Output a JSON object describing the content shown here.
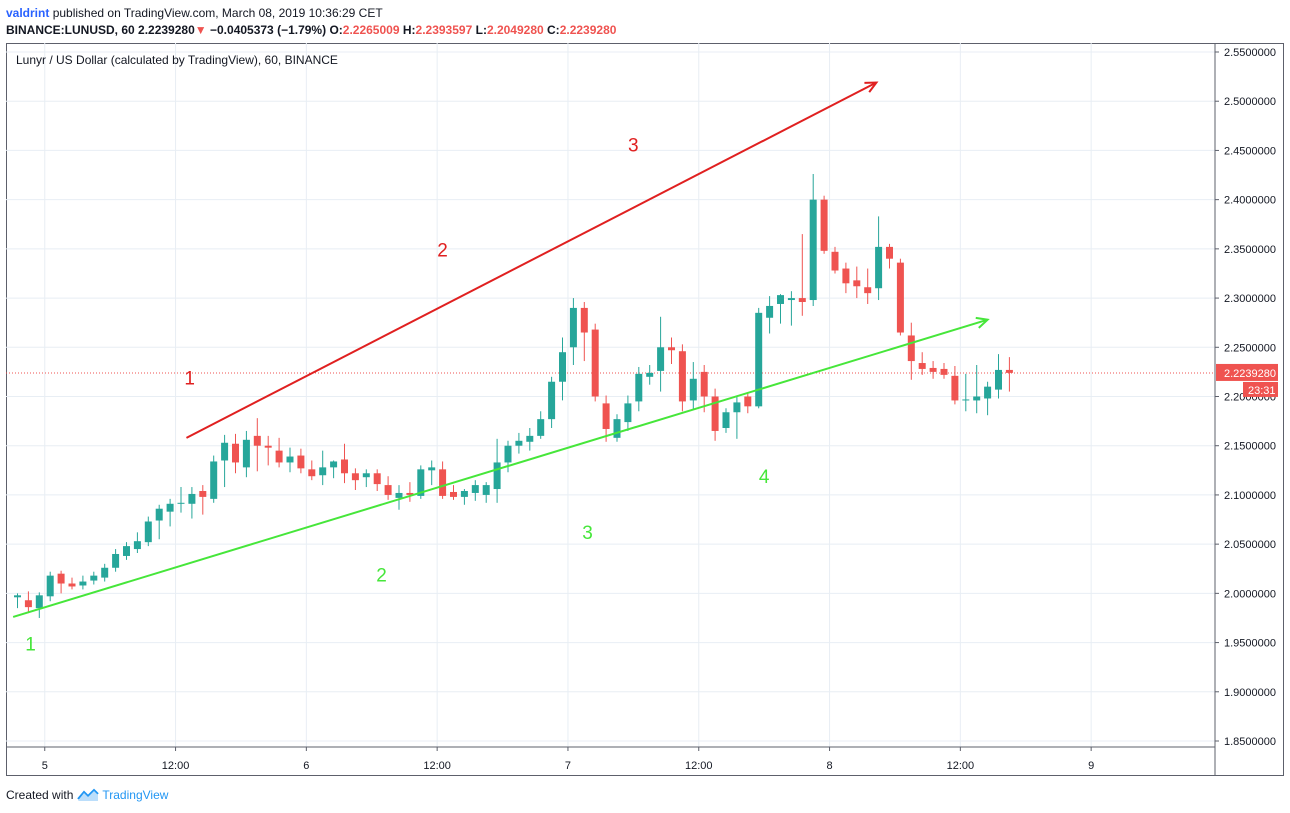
{
  "header": {
    "author": "valdrint",
    "published": "published on TradingView.com, March 08, 2019 10:36:29 CET",
    "symbol": "BINANCE:LUNUSD, 60",
    "last": "2.2239280",
    "change_arrow": "▼",
    "change": "−0.0405373 (−1.79%)",
    "o_label": "O:",
    "o_value": "2.2265009",
    "h_label": "H:",
    "h_value": "2.2393597",
    "l_label": "L:",
    "l_value": "2.2049280",
    "c_label": "C:",
    "c_value": "2.2239280"
  },
  "footer": {
    "created_with": "Created with",
    "brand": "TradingView"
  },
  "colors": {
    "up": "#26a69a",
    "down": "#ef5350",
    "upper_line": "#e02020",
    "lower_line": "#46e63a",
    "grid": "#e8eef4",
    "price_line": "#ef5350"
  },
  "chart_data": {
    "type": "candlestick",
    "title": "Lunyr / US Dollar (calculated by TradingView), 60, BINANCE",
    "timeframe": "60",
    "y_range": [
      1.835,
      2.56
    ],
    "y_ticks": [
      "2.5500000",
      "2.5000000",
      "2.4500000",
      "2.4000000",
      "2.3500000",
      "2.3000000",
      "2.2500000",
      "2.2000000",
      "2.1500000",
      "2.1000000",
      "2.0500000",
      "2.0000000",
      "1.9500000",
      "1.9000000",
      "1.8500000"
    ],
    "x_ticks": [
      {
        "label": "5",
        "bar": 2.5
      },
      {
        "label": "12:00",
        "bar": 14.5
      },
      {
        "label": "6",
        "bar": 26.5
      },
      {
        "label": "12:00",
        "bar": 38.5
      },
      {
        "label": "7",
        "bar": 50.5
      },
      {
        "label": "12:00",
        "bar": 62.5
      },
      {
        "label": "8",
        "bar": 74.5
      },
      {
        "label": "12:00",
        "bar": 86.5
      },
      {
        "label": "9",
        "bar": 98.5
      }
    ],
    "current_price": "2.2239280",
    "countdown": "23:31",
    "candles": [
      [
        1.996,
        2.0,
        1.985,
        1.998
      ],
      [
        1.993,
        2.002,
        1.98,
        1.986
      ],
      [
        1.985,
        2.001,
        1.975,
        1.998
      ],
      [
        1.997,
        2.022,
        1.992,
        2.018
      ],
      [
        2.02,
        2.023,
        2.0,
        2.01
      ],
      [
        2.01,
        2.016,
        2.004,
        2.007
      ],
      [
        2.008,
        2.018,
        2.004,
        2.012
      ],
      [
        2.013,
        2.022,
        2.009,
        2.018
      ],
      [
        2.016,
        2.03,
        2.012,
        2.026
      ],
      [
        2.026,
        2.045,
        2.022,
        2.04
      ],
      [
        2.038,
        2.052,
        2.034,
        2.048
      ],
      [
        2.045,
        2.062,
        2.041,
        2.053
      ],
      [
        2.052,
        2.078,
        2.048,
        2.073
      ],
      [
        2.074,
        2.09,
        2.055,
        2.086
      ],
      [
        2.083,
        2.096,
        2.068,
        2.091
      ],
      [
        2.091,
        2.108,
        2.082,
        2.092
      ],
      [
        2.091,
        2.108,
        2.076,
        2.101
      ],
      [
        2.104,
        2.11,
        2.08,
        2.098
      ],
      [
        2.096,
        2.14,
        2.092,
        2.134
      ],
      [
        2.135,
        2.161,
        2.108,
        2.153
      ],
      [
        2.152,
        2.162,
        2.122,
        2.133
      ],
      [
        2.128,
        2.165,
        2.118,
        2.156
      ],
      [
        2.16,
        2.178,
        2.124,
        2.15
      ],
      [
        2.15,
        2.16,
        2.13,
        2.148
      ],
      [
        2.145,
        2.158,
        2.128,
        2.133
      ],
      [
        2.133,
        2.148,
        2.123,
        2.139
      ],
      [
        2.14,
        2.147,
        2.122,
        2.127
      ],
      [
        2.126,
        2.135,
        2.115,
        2.119
      ],
      [
        2.12,
        2.145,
        2.11,
        2.128
      ],
      [
        2.128,
        2.135,
        2.117,
        2.134
      ],
      [
        2.136,
        2.152,
        2.112,
        2.122
      ],
      [
        2.122,
        2.127,
        2.105,
        2.115
      ],
      [
        2.118,
        2.126,
        2.108,
        2.122
      ],
      [
        2.122,
        2.126,
        2.104,
        2.111
      ],
      [
        2.11,
        2.119,
        2.095,
        2.1
      ],
      [
        2.097,
        2.11,
        2.085,
        2.102
      ],
      [
        2.102,
        2.113,
        2.093,
        2.1
      ],
      [
        2.099,
        2.13,
        2.096,
        2.126
      ],
      [
        2.125,
        2.135,
        2.11,
        2.128
      ],
      [
        2.126,
        2.134,
        2.096,
        2.099
      ],
      [
        2.103,
        2.11,
        2.095,
        2.098
      ],
      [
        2.098,
        2.106,
        2.09,
        2.104
      ],
      [
        2.102,
        2.115,
        2.094,
        2.11
      ],
      [
        2.1,
        2.113,
        2.092,
        2.11
      ],
      [
        2.106,
        2.157,
        2.092,
        2.133
      ],
      [
        2.133,
        2.155,
        2.123,
        2.15
      ],
      [
        2.15,
        2.163,
        2.142,
        2.155
      ],
      [
        2.154,
        2.168,
        2.145,
        2.16
      ],
      [
        2.16,
        2.185,
        2.157,
        2.177
      ],
      [
        2.177,
        2.22,
        2.168,
        2.215
      ],
      [
        2.215,
        2.26,
        2.196,
        2.245
      ],
      [
        2.25,
        2.3,
        2.232,
        2.29
      ],
      [
        2.29,
        2.296,
        2.236,
        2.265
      ],
      [
        2.268,
        2.274,
        2.195,
        2.2
      ],
      [
        2.193,
        2.201,
        2.154,
        2.167
      ],
      [
        2.158,
        2.182,
        2.154,
        2.177
      ],
      [
        2.174,
        2.201,
        2.165,
        2.193
      ],
      [
        2.195,
        2.23,
        2.185,
        2.223
      ],
      [
        2.22,
        2.232,
        2.212,
        2.224
      ],
      [
        2.226,
        2.281,
        2.205,
        2.25
      ],
      [
        2.25,
        2.26,
        2.233,
        2.247
      ],
      [
        2.246,
        2.253,
        2.185,
        2.195
      ],
      [
        2.196,
        2.235,
        2.187,
        2.218
      ],
      [
        2.225,
        2.232,
        2.184,
        2.2
      ],
      [
        2.2,
        2.208,
        2.155,
        2.165
      ],
      [
        2.168,
        2.188,
        2.163,
        2.184
      ],
      [
        2.184,
        2.2,
        2.157,
        2.194
      ],
      [
        2.2,
        2.203,
        2.183,
        2.19
      ],
      [
        2.19,
        2.29,
        2.188,
        2.285
      ],
      [
        2.28,
        2.302,
        2.264,
        2.292
      ],
      [
        2.294,
        2.304,
        2.274,
        2.303
      ],
      [
        2.298,
        2.307,
        2.272,
        2.3
      ],
      [
        2.3,
        2.365,
        2.282,
        2.296
      ],
      [
        2.298,
        2.426,
        2.292,
        2.4
      ],
      [
        2.4,
        2.404,
        2.345,
        2.348
      ],
      [
        2.347,
        2.352,
        2.325,
        2.328
      ],
      [
        2.33,
        2.336,
        2.305,
        2.315
      ],
      [
        2.318,
        2.332,
        2.3,
        2.312
      ],
      [
        2.311,
        2.33,
        2.294,
        2.305
      ],
      [
        2.31,
        2.383,
        2.298,
        2.352
      ],
      [
        2.352,
        2.355,
        2.33,
        2.34
      ],
      [
        2.336,
        2.34,
        2.262,
        2.265
      ],
      [
        2.262,
        2.275,
        2.217,
        2.236
      ],
      [
        2.234,
        2.245,
        2.222,
        2.228
      ],
      [
        2.229,
        2.236,
        2.218,
        2.225
      ],
      [
        2.228,
        2.234,
        2.218,
        2.222
      ],
      [
        2.221,
        2.231,
        2.192,
        2.196
      ],
      [
        2.196,
        2.223,
        2.185,
        2.197
      ],
      [
        2.196,
        2.232,
        2.183,
        2.2
      ],
      [
        2.198,
        2.215,
        2.181,
        2.21
      ],
      [
        2.207,
        2.243,
        2.198,
        2.227
      ],
      [
        2.227,
        2.24,
        2.205,
        2.224
      ]
    ],
    "trendlines": [
      {
        "color": "upper",
        "from": [
          15.5,
          2.158
        ],
        "to": [
          78.8,
          2.519
        ],
        "arrow": true
      },
      {
        "color": "lower",
        "from": [
          -0.4,
          1.976
        ],
        "to": [
          89.0,
          2.278
        ],
        "arrow": true
      }
    ],
    "annotations": [
      {
        "text": "1",
        "color": "upper",
        "bar": 15.8,
        "price": 2.212
      },
      {
        "text": "2",
        "color": "upper",
        "bar": 39.0,
        "price": 2.342
      },
      {
        "text": "3",
        "color": "upper",
        "bar": 56.5,
        "price": 2.449
      },
      {
        "text": "1",
        "color": "lower",
        "bar": 1.2,
        "price": 1.942
      },
      {
        "text": "2",
        "color": "lower",
        "bar": 33.4,
        "price": 2.012
      },
      {
        "text": "3",
        "color": "lower",
        "bar": 52.3,
        "price": 2.055
      },
      {
        "text": "4",
        "color": "lower",
        "bar": 68.5,
        "price": 2.112
      }
    ]
  }
}
